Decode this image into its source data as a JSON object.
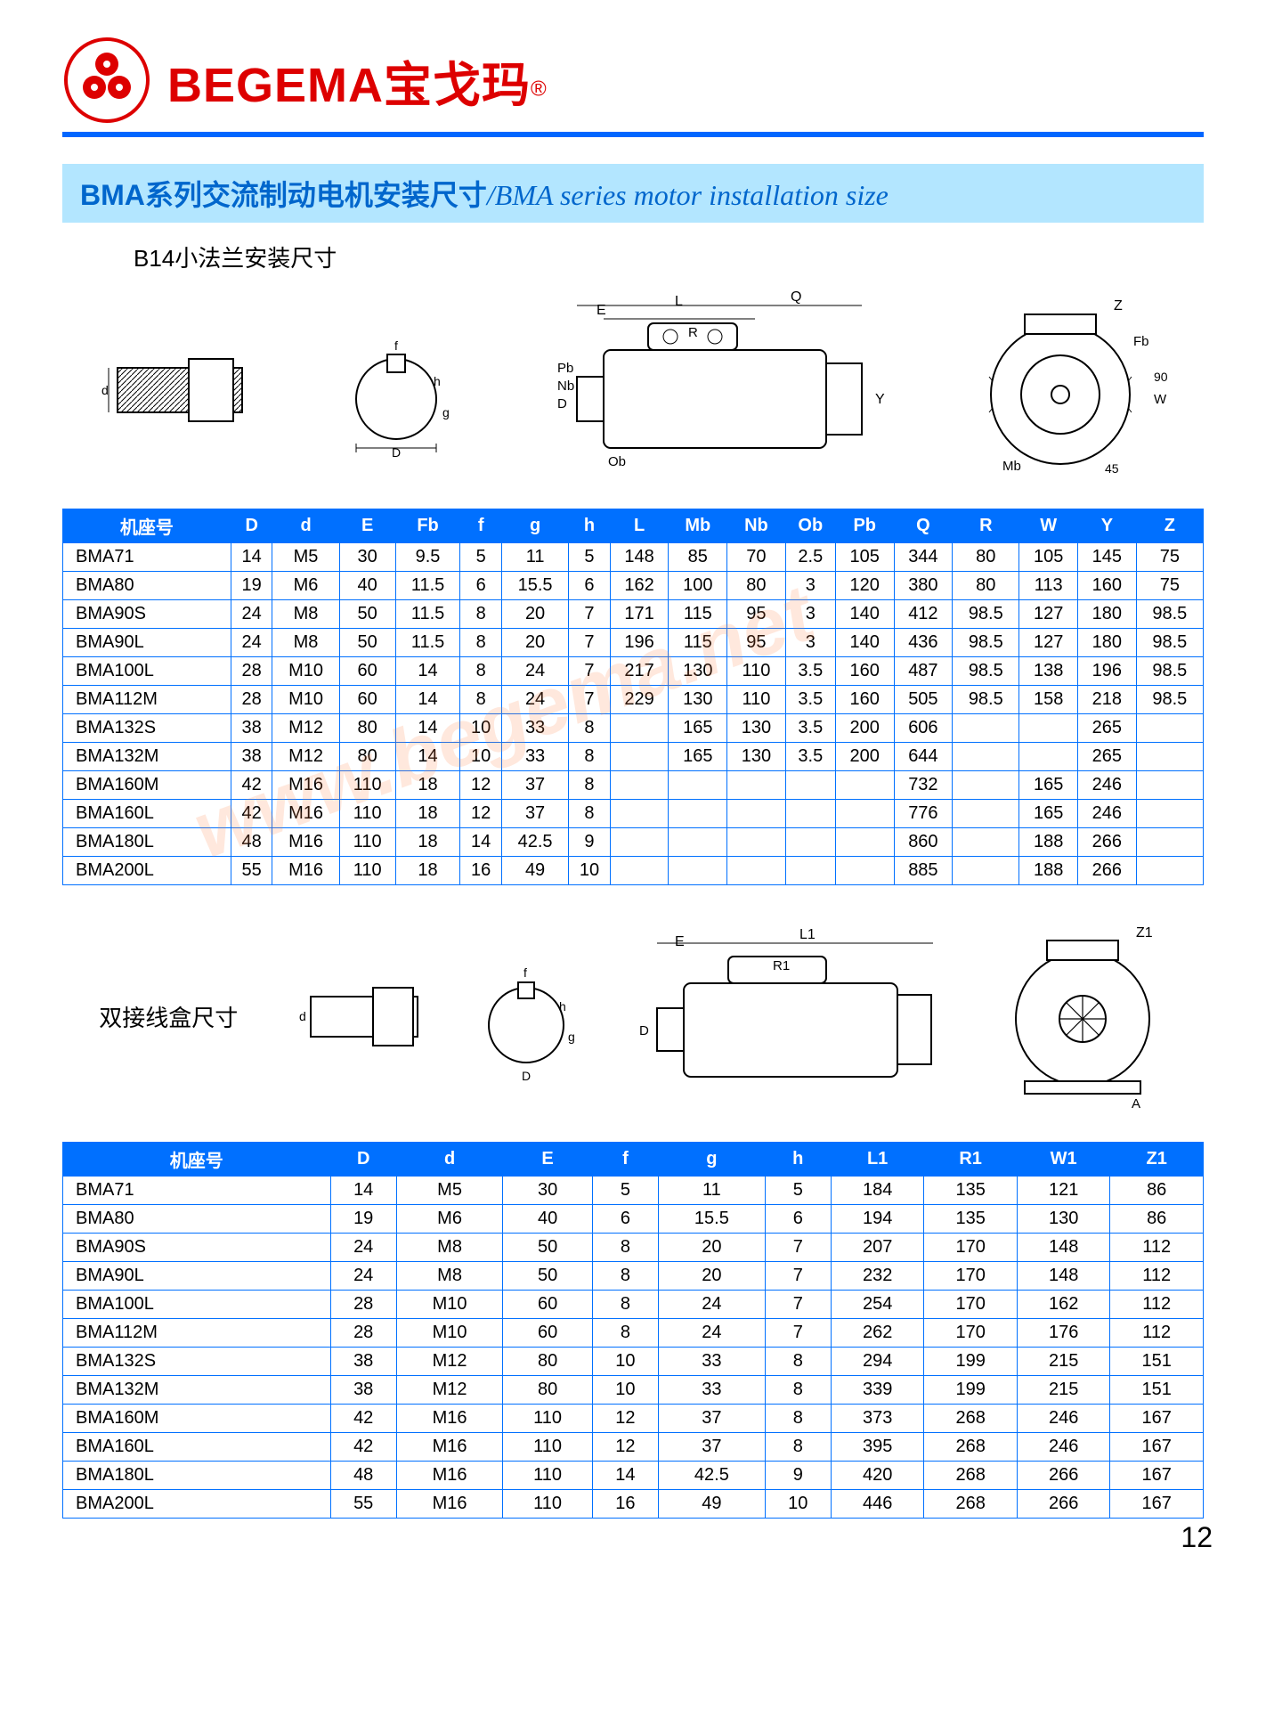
{
  "brand": {
    "name": "BEGEMA宝戈玛",
    "reg": "®"
  },
  "title": {
    "cn": "BMA系列交流制动电机安装尺寸",
    "en": "/BMA series motor installation size"
  },
  "section1_label": "B14小法兰安装尺寸",
  "section2_label": "双接线盒尺寸",
  "watermark": "www.begema.net",
  "page_number": "12",
  "colors": {
    "header_rule": "#0066ff",
    "brand_red": "#dd0000",
    "titlebar_bg": "#b3e6ff",
    "titlebar_fg": "#0066cc",
    "table_border": "#0070ff",
    "table_header_bg": "#0070ff",
    "table_header_fg": "#ffffff",
    "watermark": "rgba(255,128,64,0.18)"
  },
  "table1": {
    "columns": [
      "机座号",
      "D",
      "d",
      "E",
      "Fb",
      "f",
      "g",
      "h",
      "L",
      "Mb",
      "Nb",
      "Ob",
      "Pb",
      "Q",
      "R",
      "W",
      "Y",
      "Z"
    ],
    "rows": [
      [
        "BMA71",
        "14",
        "M5",
        "30",
        "9.5",
        "5",
        "11",
        "5",
        "148",
        "85",
        "70",
        "2.5",
        "105",
        "344",
        "80",
        "105",
        "145",
        "75"
      ],
      [
        "BMA80",
        "19",
        "M6",
        "40",
        "11.5",
        "6",
        "15.5",
        "6",
        "162",
        "100",
        "80",
        "3",
        "120",
        "380",
        "80",
        "113",
        "160",
        "75"
      ],
      [
        "BMA90S",
        "24",
        "M8",
        "50",
        "11.5",
        "8",
        "20",
        "7",
        "171",
        "115",
        "95",
        "3",
        "140",
        "412",
        "98.5",
        "127",
        "180",
        "98.5"
      ],
      [
        "BMA90L",
        "24",
        "M8",
        "50",
        "11.5",
        "8",
        "20",
        "7",
        "196",
        "115",
        "95",
        "3",
        "140",
        "436",
        "98.5",
        "127",
        "180",
        "98.5"
      ],
      [
        "BMA100L",
        "28",
        "M10",
        "60",
        "14",
        "8",
        "24",
        "7",
        "217",
        "130",
        "110",
        "3.5",
        "160",
        "487",
        "98.5",
        "138",
        "196",
        "98.5"
      ],
      [
        "BMA112M",
        "28",
        "M10",
        "60",
        "14",
        "8",
        "24",
        "7",
        "229",
        "130",
        "110",
        "3.5",
        "160",
        "505",
        "98.5",
        "158",
        "218",
        "98.5"
      ],
      [
        "BMA132S",
        "38",
        "M12",
        "80",
        "14",
        "10",
        "33",
        "8",
        "",
        "165",
        "130",
        "3.5",
        "200",
        "606",
        "",
        "",
        "265",
        ""
      ],
      [
        "BMA132M",
        "38",
        "M12",
        "80",
        "14",
        "10",
        "33",
        "8",
        "",
        "165",
        "130",
        "3.5",
        "200",
        "644",
        "",
        "",
        "265",
        ""
      ],
      [
        "BMA160M",
        "42",
        "M16",
        "110",
        "18",
        "12",
        "37",
        "8",
        "",
        "",
        "",
        "",
        "",
        "732",
        "",
        "165",
        "246",
        ""
      ],
      [
        "BMA160L",
        "42",
        "M16",
        "110",
        "18",
        "12",
        "37",
        "8",
        "",
        "",
        "",
        "",
        "",
        "776",
        "",
        "165",
        "246",
        ""
      ],
      [
        "BMA180L",
        "48",
        "M16",
        "110",
        "18",
        "14",
        "42.5",
        "9",
        "",
        "",
        "",
        "",
        "",
        "860",
        "",
        "188",
        "266",
        ""
      ],
      [
        "BMA200L",
        "55",
        "M16",
        "110",
        "18",
        "16",
        "49",
        "10",
        "",
        "",
        "",
        "",
        "",
        "885",
        "",
        "188",
        "266",
        ""
      ]
    ]
  },
  "table2": {
    "columns": [
      "机座号",
      "D",
      "d",
      "E",
      "f",
      "g",
      "h",
      "L1",
      "R1",
      "W1",
      "Z1"
    ],
    "rows": [
      [
        "BMA71",
        "14",
        "M5",
        "30",
        "5",
        "11",
        "5",
        "184",
        "135",
        "121",
        "86"
      ],
      [
        "BMA80",
        "19",
        "M6",
        "40",
        "6",
        "15.5",
        "6",
        "194",
        "135",
        "130",
        "86"
      ],
      [
        "BMA90S",
        "24",
        "M8",
        "50",
        "8",
        "20",
        "7",
        "207",
        "170",
        "148",
        "112"
      ],
      [
        "BMA90L",
        "24",
        "M8",
        "50",
        "8",
        "20",
        "7",
        "232",
        "170",
        "148",
        "112"
      ],
      [
        "BMA100L",
        "28",
        "M10",
        "60",
        "8",
        "24",
        "7",
        "254",
        "170",
        "162",
        "112"
      ],
      [
        "BMA112M",
        "28",
        "M10",
        "60",
        "8",
        "24",
        "7",
        "262",
        "170",
        "176",
        "112"
      ],
      [
        "BMA132S",
        "38",
        "M12",
        "80",
        "10",
        "33",
        "8",
        "294",
        "199",
        "215",
        "151"
      ],
      [
        "BMA132M",
        "38",
        "M12",
        "80",
        "10",
        "33",
        "8",
        "339",
        "199",
        "215",
        "151"
      ],
      [
        "BMA160M",
        "42",
        "M16",
        "110",
        "12",
        "37",
        "8",
        "373",
        "268",
        "246",
        "167"
      ],
      [
        "BMA160L",
        "42",
        "M16",
        "110",
        "12",
        "37",
        "8",
        "395",
        "268",
        "246",
        "167"
      ],
      [
        "BMA180L",
        "48",
        "M16",
        "110",
        "14",
        "42.5",
        "9",
        "420",
        "268",
        "266",
        "167"
      ],
      [
        "BMA200L",
        "55",
        "M16",
        "110",
        "16",
        "49",
        "10",
        "446",
        "268",
        "266",
        "167"
      ]
    ]
  },
  "diagrams": {
    "row1_labels": [
      "d",
      "f",
      "h",
      "g",
      "D",
      "E",
      "L",
      "R",
      "Q",
      "Ob",
      "Pb",
      "Nb",
      "D",
      "Y",
      "Z",
      "Fb",
      "Mb",
      "W",
      "90",
      "45"
    ],
    "row2_labels": [
      "d",
      "f",
      "h",
      "g",
      "D",
      "E",
      "L1",
      "R1",
      "D",
      "Z1",
      "A"
    ]
  }
}
